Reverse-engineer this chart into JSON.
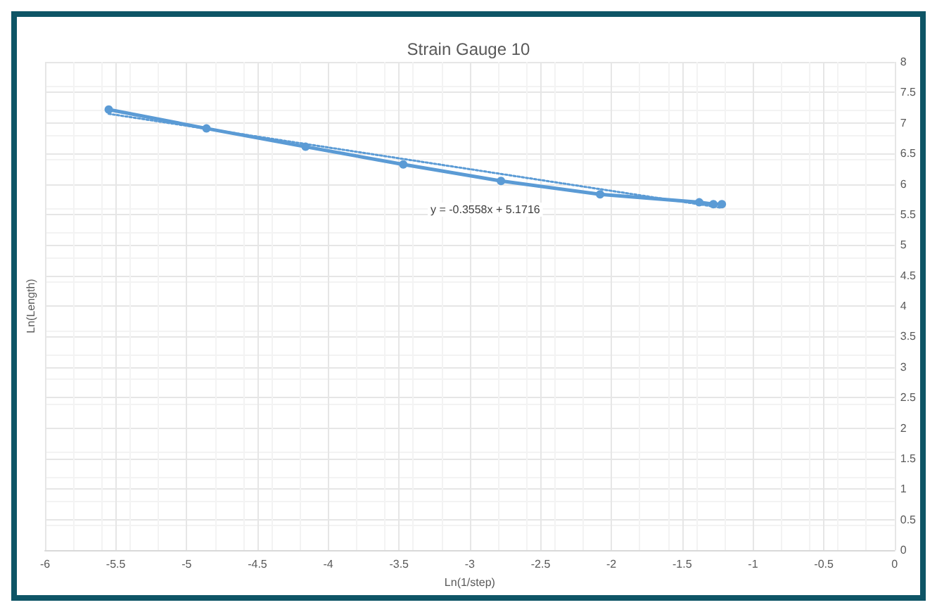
{
  "chart_data": {
    "type": "line",
    "title": "Strain Gauge 10",
    "xlabel": "Ln(1/step)",
    "ylabel": "Ln(Length)",
    "xlim": [
      -6,
      0
    ],
    "xticks": [
      -6,
      -5.5,
      -5,
      -4.5,
      -4,
      -3.5,
      -3,
      -2.5,
      -2,
      -1.5,
      -1,
      -0.5,
      0
    ],
    "ylim": [
      0,
      8
    ],
    "yticks": [
      0,
      0.5,
      1,
      1.5,
      2,
      2.5,
      3,
      3.5,
      4,
      4.5,
      5,
      5.5,
      6,
      6.5,
      7,
      7.5,
      8
    ],
    "grid": true,
    "marker": "circle",
    "line_style": "solid",
    "series": [
      {
        "color": "#5b9bd5",
        "x": [
          -5.55,
          -4.86,
          -4.16,
          -3.47,
          -2.78,
          -2.08,
          -1.38,
          -1.28,
          -1.22
        ],
        "values": [
          7.22,
          6.91,
          6.61,
          6.32,
          6.05,
          5.83,
          5.7,
          5.67,
          5.67
        ]
      },
      {
        "type": "line",
        "color": "#5b9bd5",
        "line_style": "dotted",
        "marker": "none",
        "x": [
          -5.55,
          -1.22
        ],
        "values": [
          7.15,
          5.61
        ]
      }
    ],
    "annotations": [
      "y = -0.3558x + 5.1716"
    ]
  }
}
